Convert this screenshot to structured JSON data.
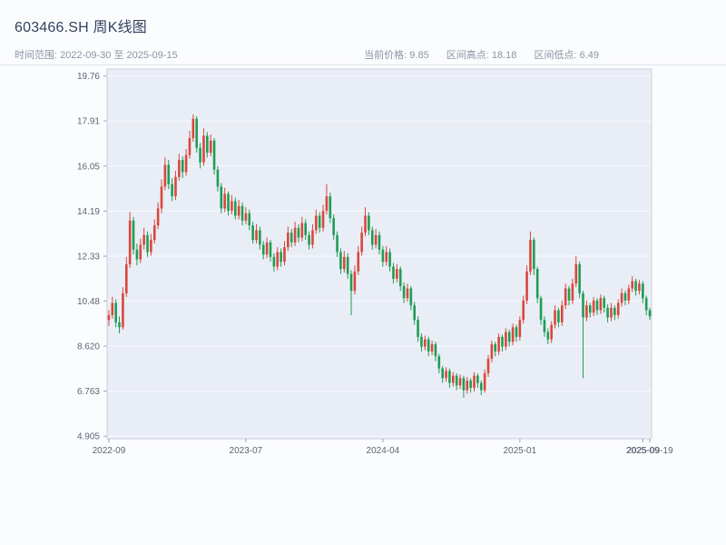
{
  "header": {
    "title": "603466.SH 周K线图",
    "subtitle": "时间范围: 2022-09-30 至 2025-09-15",
    "stats": [
      {
        "text": "当前价格: 9.85"
      },
      {
        "text": "区间高点: 18.18"
      },
      {
        "text": "区间低点: 6.49"
      }
    ]
  },
  "chart_data": {
    "type": "candlestick",
    "title": "603466.SH 周K线图",
    "date_range": {
      "start": "2022-09-30",
      "end": "2025-09-15"
    },
    "current_price": 9.85,
    "range_high": 18.18,
    "range_low": 6.49,
    "ylim": [
      4.8,
      20.05
    ],
    "grid": true,
    "up_color": "#d9483b",
    "down_color": "#1f9d55",
    "plot_bg": "#e9edf6",
    "grid_color": "#f8f9fc",
    "spine_color": "#c9cfdb",
    "tick_label_color": "#5c6575",
    "y_ticks": [
      {
        "label": "19.76",
        "value": 19.76
      },
      {
        "label": "17.91",
        "value": 17.91
      },
      {
        "label": "16.05",
        "value": 16.05
      },
      {
        "label": "14.19",
        "value": 14.19
      },
      {
        "label": "12.33",
        "value": 12.33
      },
      {
        "label": "10.48",
        "value": 10.48
      },
      {
        "label": "8.620",
        "value": 8.62
      },
      {
        "label": "6.763",
        "value": 6.763
      },
      {
        "label": "4.905",
        "value": 4.905
      }
    ],
    "x_ticks": [
      {
        "label": "2022-09",
        "index": 0
      },
      {
        "label": "2023-07",
        "index": 39
      },
      {
        "label": "2024-04",
        "index": 78
      },
      {
        "label": "2025-01",
        "index": 117
      },
      {
        "label": "2025-09",
        "index": 152
      },
      {
        "label": "2025-09-19",
        "index": 154
      }
    ],
    "ohlc_note": "weekly candles [open, high, low, close] from 2022-09-30",
    "candles": [
      [
        9.7,
        10.1,
        9.45,
        9.9
      ],
      [
        9.9,
        10.65,
        9.75,
        10.4
      ],
      [
        10.4,
        10.55,
        9.4,
        9.6
      ],
      [
        9.6,
        9.85,
        9.15,
        9.4
      ],
      [
        9.4,
        11.05,
        9.3,
        10.8
      ],
      [
        10.8,
        12.3,
        10.65,
        12.0
      ],
      [
        12.0,
        14.15,
        11.85,
        13.8
      ],
      [
        13.8,
        13.95,
        12.4,
        12.6
      ],
      [
        12.6,
        12.85,
        11.95,
        12.2
      ],
      [
        12.2,
        13.05,
        12.05,
        12.8
      ],
      [
        12.8,
        13.5,
        12.6,
        13.2
      ],
      [
        13.2,
        13.35,
        12.3,
        12.5
      ],
      [
        12.5,
        13.25,
        12.35,
        13.0
      ],
      [
        13.0,
        13.85,
        12.85,
        13.6
      ],
      [
        13.6,
        14.55,
        13.45,
        14.3
      ],
      [
        14.3,
        15.5,
        14.1,
        15.2
      ],
      [
        15.2,
        16.4,
        15.05,
        16.1
      ],
      [
        16.1,
        16.3,
        15.1,
        15.3
      ],
      [
        15.3,
        15.55,
        14.6,
        14.8
      ],
      [
        14.8,
        15.85,
        14.65,
        15.6
      ],
      [
        15.6,
        16.55,
        15.45,
        16.3
      ],
      [
        16.3,
        16.45,
        15.55,
        15.8
      ],
      [
        15.8,
        16.75,
        15.65,
        16.5
      ],
      [
        16.5,
        17.5,
        16.35,
        17.2
      ],
      [
        17.2,
        18.18,
        17.05,
        18.0
      ],
      [
        18.0,
        18.1,
        16.6,
        16.8
      ],
      [
        16.8,
        17.0,
        15.95,
        16.2
      ],
      [
        16.2,
        17.6,
        16.05,
        17.3
      ],
      [
        17.3,
        17.45,
        16.4,
        16.6
      ],
      [
        16.6,
        17.35,
        16.45,
        17.1
      ],
      [
        17.1,
        17.2,
        15.7,
        15.9
      ],
      [
        15.9,
        16.05,
        15.0,
        15.2
      ],
      [
        15.2,
        15.35,
        14.1,
        14.3
      ],
      [
        14.3,
        15.15,
        14.15,
        14.9
      ],
      [
        14.9,
        15.0,
        14.0,
        14.2
      ],
      [
        14.2,
        14.85,
        14.05,
        14.6
      ],
      [
        14.6,
        14.75,
        13.85,
        14.0
      ],
      [
        14.0,
        14.65,
        13.85,
        14.4
      ],
      [
        14.4,
        14.55,
        13.6,
        13.8
      ],
      [
        13.8,
        14.35,
        13.65,
        14.1
      ],
      [
        14.1,
        14.25,
        13.4,
        13.6
      ],
      [
        13.6,
        13.75,
        12.85,
        13.0
      ],
      [
        13.0,
        13.65,
        12.85,
        13.4
      ],
      [
        13.4,
        13.55,
        12.6,
        12.8
      ],
      [
        12.8,
        12.95,
        12.2,
        12.4
      ],
      [
        12.4,
        13.1,
        12.25,
        12.9
      ],
      [
        12.9,
        13.0,
        12.1,
        12.3
      ],
      [
        12.3,
        12.45,
        11.7,
        11.9
      ],
      [
        11.9,
        12.7,
        11.75,
        12.5
      ],
      [
        12.5,
        12.65,
        11.9,
        12.1
      ],
      [
        12.1,
        12.95,
        11.95,
        12.7
      ],
      [
        12.7,
        13.55,
        12.55,
        13.3
      ],
      [
        13.3,
        13.45,
        12.7,
        12.9
      ],
      [
        12.9,
        13.75,
        12.75,
        13.5
      ],
      [
        13.5,
        13.65,
        12.9,
        13.1
      ],
      [
        13.1,
        13.95,
        12.95,
        13.7
      ],
      [
        13.7,
        13.85,
        13.0,
        13.2
      ],
      [
        13.2,
        13.35,
        12.6,
        12.8
      ],
      [
        12.8,
        13.65,
        12.65,
        13.4
      ],
      [
        13.4,
        14.25,
        13.25,
        14.0
      ],
      [
        14.0,
        14.15,
        13.3,
        13.5
      ],
      [
        13.5,
        14.45,
        13.35,
        14.2
      ],
      [
        14.2,
        15.3,
        14.05,
        14.8
      ],
      [
        14.8,
        14.95,
        13.7,
        13.9
      ],
      [
        13.9,
        14.05,
        13.0,
        13.2
      ],
      [
        13.2,
        13.35,
        12.3,
        12.5
      ],
      [
        12.5,
        12.65,
        11.6,
        11.8
      ],
      [
        11.8,
        12.55,
        11.65,
        12.3
      ],
      [
        12.3,
        12.45,
        11.4,
        11.6
      ],
      [
        11.6,
        11.75,
        9.9,
        10.9
      ],
      [
        10.9,
        11.95,
        10.75,
        11.7
      ],
      [
        11.7,
        12.75,
        11.55,
        12.5
      ],
      [
        12.5,
        13.55,
        12.35,
        13.3
      ],
      [
        13.3,
        14.35,
        13.15,
        14.0
      ],
      [
        14.0,
        14.15,
        13.2,
        13.4
      ],
      [
        13.4,
        13.55,
        12.6,
        12.8
      ],
      [
        12.8,
        13.45,
        12.65,
        13.2
      ],
      [
        13.2,
        13.35,
        12.4,
        12.6
      ],
      [
        12.6,
        12.75,
        11.9,
        12.1
      ],
      [
        12.1,
        12.75,
        11.95,
        12.5
      ],
      [
        12.5,
        12.65,
        11.7,
        11.9
      ],
      [
        11.9,
        12.05,
        11.2,
        11.4
      ],
      [
        11.4,
        12.0,
        11.25,
        11.8
      ],
      [
        11.8,
        11.9,
        10.9,
        11.1
      ],
      [
        11.1,
        11.25,
        10.4,
        10.6
      ],
      [
        10.6,
        11.2,
        10.45,
        11.0
      ],
      [
        11.0,
        11.1,
        10.1,
        10.3
      ],
      [
        10.3,
        10.45,
        9.5,
        9.7
      ],
      [
        9.7,
        9.85,
        8.8,
        9.0
      ],
      [
        9.0,
        9.15,
        8.4,
        8.6
      ],
      [
        8.6,
        9.05,
        8.45,
        8.9
      ],
      [
        8.9,
        9.0,
        8.2,
        8.4
      ],
      [
        8.4,
        8.85,
        8.25,
        8.7
      ],
      [
        8.7,
        8.8,
        8.0,
        8.2
      ],
      [
        8.2,
        8.3,
        7.5,
        7.7
      ],
      [
        7.7,
        7.8,
        7.1,
        7.3
      ],
      [
        7.3,
        7.75,
        7.15,
        7.6
      ],
      [
        7.6,
        7.7,
        6.9,
        7.1
      ],
      [
        7.1,
        7.55,
        6.95,
        7.4
      ],
      [
        7.4,
        7.5,
        6.8,
        7.0
      ],
      [
        7.0,
        7.45,
        6.85,
        7.3
      ],
      [
        7.3,
        7.4,
        6.49,
        6.8
      ],
      [
        6.8,
        7.35,
        6.65,
        7.2
      ],
      [
        7.2,
        7.3,
        6.7,
        6.9
      ],
      [
        6.9,
        7.55,
        6.75,
        7.4
      ],
      [
        7.4,
        7.5,
        6.9,
        7.1
      ],
      [
        7.1,
        7.2,
        6.6,
        6.8
      ],
      [
        6.8,
        7.65,
        6.7,
        7.5
      ],
      [
        7.5,
        8.25,
        7.35,
        8.1
      ],
      [
        8.1,
        8.85,
        7.95,
        8.7
      ],
      [
        8.7,
        8.8,
        8.2,
        8.4
      ],
      [
        8.4,
        9.15,
        8.25,
        9.0
      ],
      [
        9.0,
        9.1,
        8.4,
        8.6
      ],
      [
        8.6,
        9.35,
        8.45,
        9.2
      ],
      [
        9.2,
        9.3,
        8.6,
        8.8
      ],
      [
        8.8,
        9.55,
        8.65,
        9.4
      ],
      [
        9.4,
        9.5,
        8.8,
        9.0
      ],
      [
        9.0,
        9.85,
        8.85,
        9.7
      ],
      [
        9.7,
        10.7,
        9.55,
        10.5
      ],
      [
        10.5,
        11.95,
        10.35,
        11.7
      ],
      [
        11.7,
        13.35,
        11.55,
        13.0
      ],
      [
        13.0,
        13.1,
        11.55,
        11.8
      ],
      [
        11.8,
        11.9,
        10.4,
        10.6
      ],
      [
        10.6,
        10.7,
        9.5,
        9.7
      ],
      [
        9.7,
        9.85,
        9.0,
        9.2
      ],
      [
        9.2,
        9.35,
        8.7,
        8.9
      ],
      [
        8.9,
        9.65,
        8.75,
        9.5
      ],
      [
        9.5,
        10.3,
        9.35,
        10.1
      ],
      [
        10.1,
        10.2,
        9.4,
        9.6
      ],
      [
        9.6,
        10.5,
        9.45,
        10.3
      ],
      [
        10.3,
        11.2,
        10.15,
        11.0
      ],
      [
        11.0,
        11.1,
        10.3,
        10.5
      ],
      [
        10.5,
        11.4,
        10.35,
        11.2
      ],
      [
        11.2,
        12.33,
        11.05,
        12.0
      ],
      [
        12.0,
        12.1,
        10.6,
        10.8
      ],
      [
        10.8,
        10.9,
        7.3,
        9.8
      ],
      [
        9.8,
        10.5,
        9.65,
        10.3
      ],
      [
        10.3,
        10.4,
        9.8,
        10.0
      ],
      [
        10.0,
        10.65,
        9.85,
        10.5
      ],
      [
        10.5,
        10.6,
        9.9,
        10.1
      ],
      [
        10.1,
        10.75,
        9.95,
        10.6
      ],
      [
        10.6,
        10.7,
        10.0,
        10.2
      ],
      [
        10.2,
        10.35,
        9.6,
        9.8
      ],
      [
        9.8,
        10.4,
        9.65,
        10.2
      ],
      [
        10.2,
        10.3,
        9.7,
        9.9
      ],
      [
        9.9,
        10.55,
        9.75,
        10.4
      ],
      [
        10.4,
        11.0,
        10.25,
        10.8
      ],
      [
        10.8,
        10.9,
        10.3,
        10.5
      ],
      [
        10.5,
        11.15,
        10.35,
        11.0
      ],
      [
        11.0,
        11.5,
        10.85,
        11.3
      ],
      [
        11.3,
        11.4,
        10.7,
        10.9
      ],
      [
        10.9,
        11.35,
        10.75,
        11.2
      ],
      [
        11.2,
        11.3,
        10.4,
        10.6
      ],
      [
        10.6,
        10.7,
        9.9,
        10.1
      ],
      [
        10.1,
        10.2,
        9.7,
        9.85
      ]
    ]
  }
}
